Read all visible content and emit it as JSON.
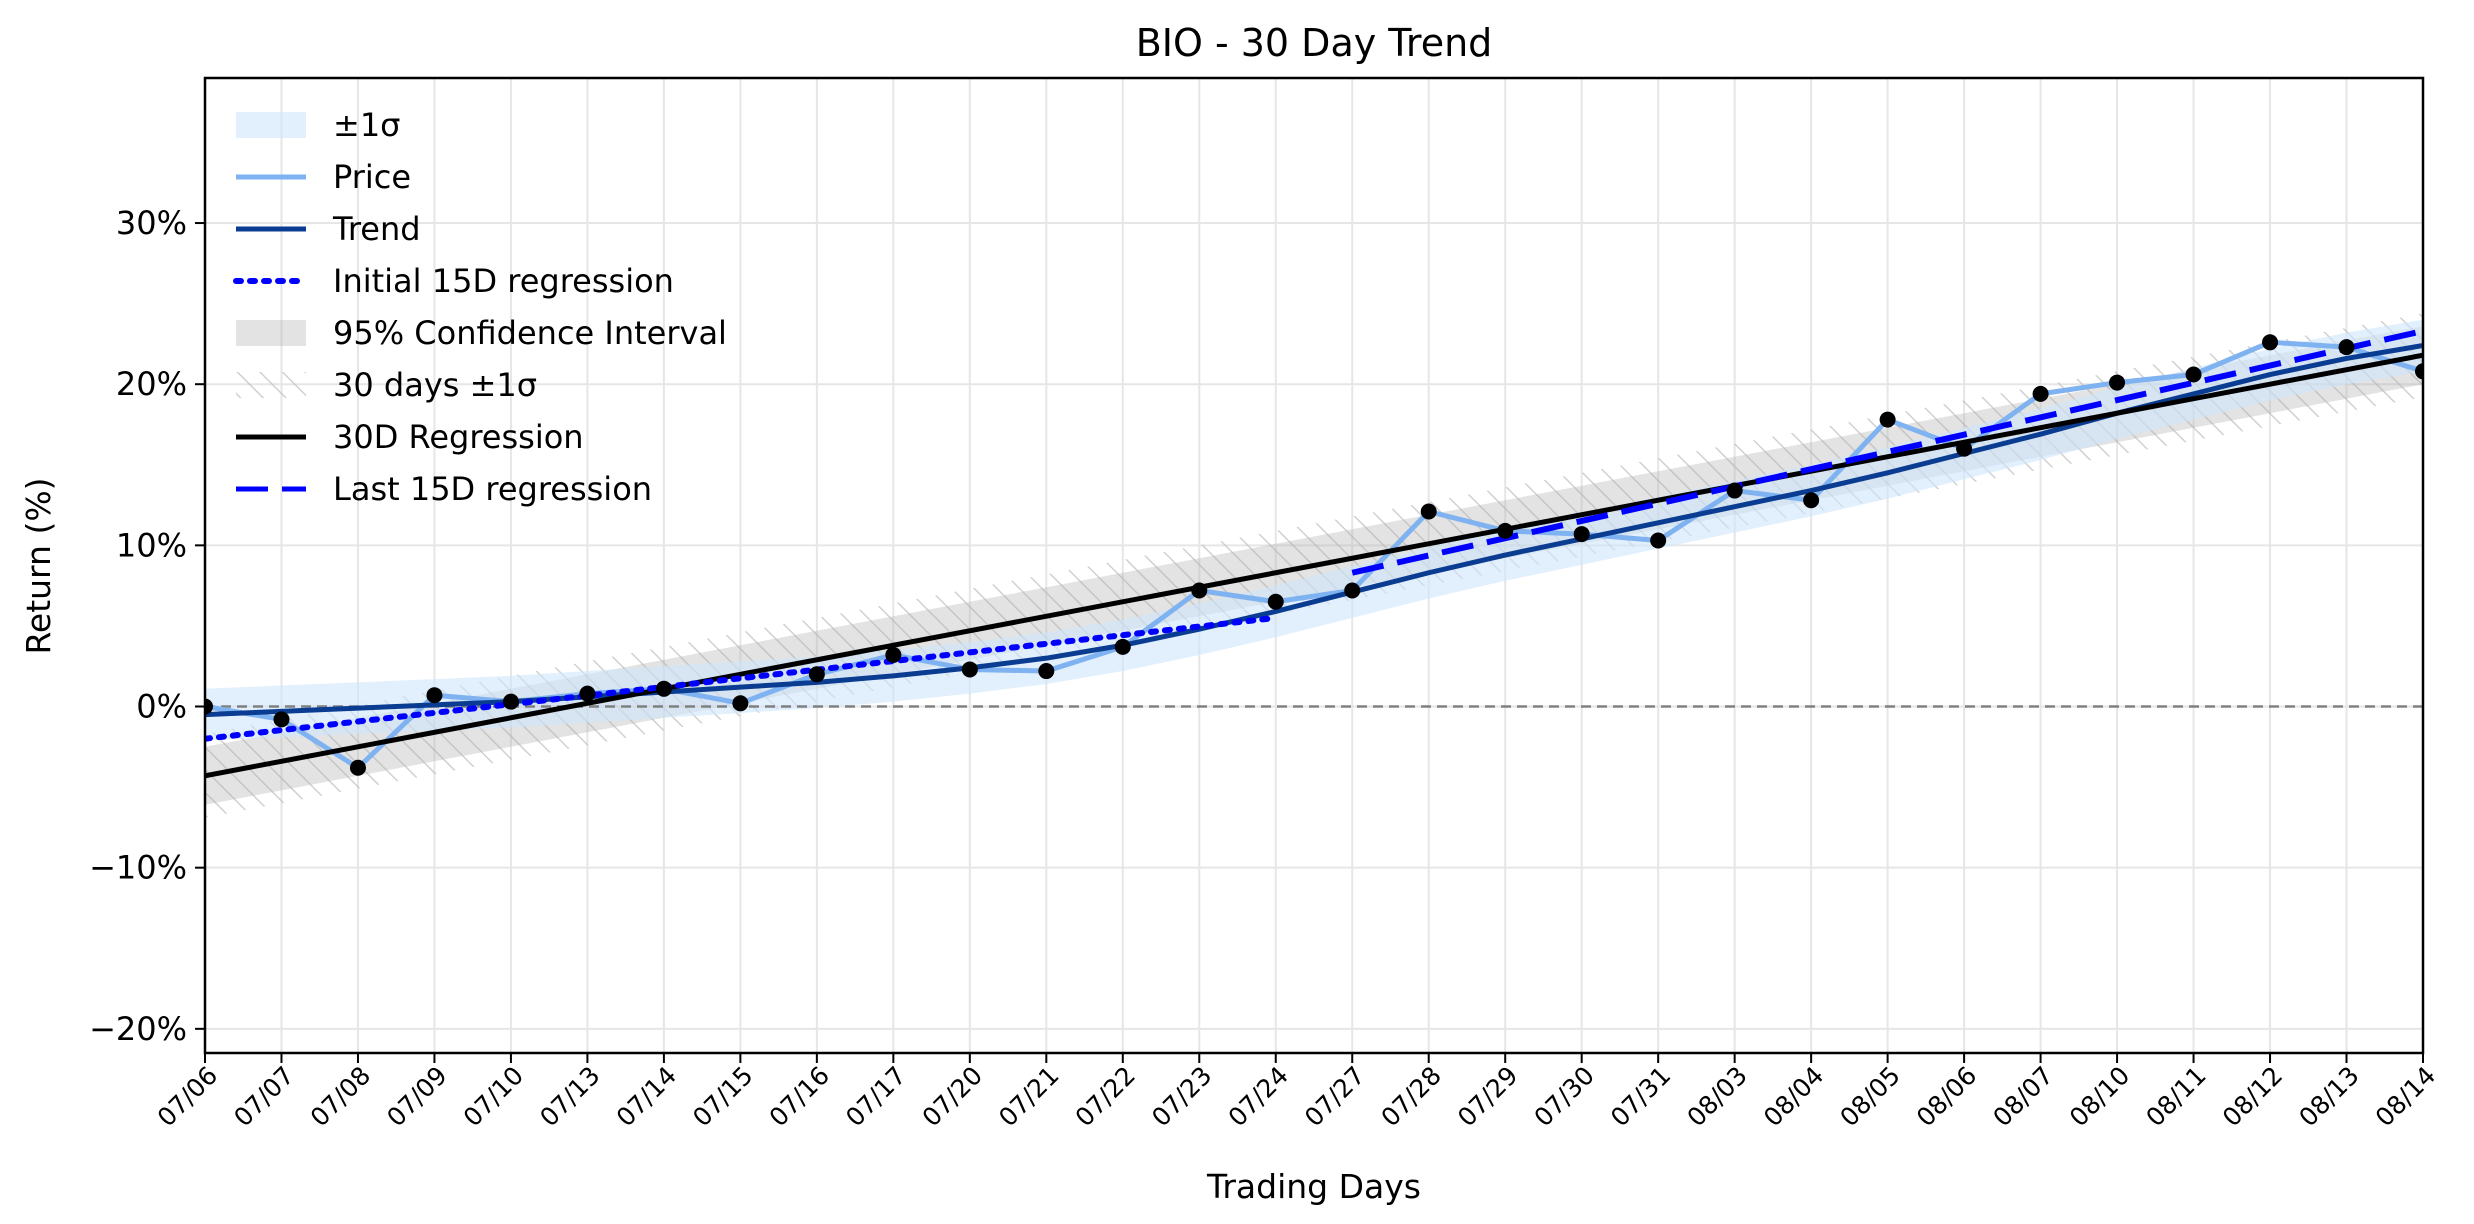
{
  "chart_data": {
    "type": "line",
    "title": "BIO - 30 Day Trend",
    "xlabel": "Trading Days",
    "ylabel": "Return (%)",
    "categories": [
      "07/06",
      "07/07",
      "07/08",
      "07/09",
      "07/10",
      "07/13",
      "07/14",
      "07/15",
      "07/16",
      "07/17",
      "07/20",
      "07/21",
      "07/22",
      "07/23",
      "07/24",
      "07/27",
      "07/28",
      "07/29",
      "07/30",
      "07/31",
      "08/03",
      "08/04",
      "08/05",
      "08/06",
      "08/07",
      "08/10",
      "08/11",
      "08/12",
      "08/13",
      "08/14"
    ],
    "ylim": [
      -21.5,
      39
    ],
    "yticks": [
      -20,
      -10,
      0,
      10,
      20,
      30
    ],
    "ytick_labels": [
      "−20%",
      "−10%",
      "0%",
      "10%",
      "20%",
      "30%"
    ],
    "grid": true,
    "zero_line": true,
    "legend_position": "top-left",
    "series": [
      {
        "name": "Price",
        "color": "#7fb2f0",
        "values": [
          0.0,
          -0.8,
          -3.8,
          0.7,
          0.3,
          0.8,
          1.1,
          0.2,
          2.0,
          3.2,
          2.3,
          2.2,
          3.7,
          7.2,
          6.5,
          7.2,
          12.1,
          10.9,
          10.7,
          10.3,
          13.4,
          12.8,
          17.8,
          16.0,
          19.4,
          20.1,
          20.6,
          22.6,
          22.3,
          20.8
        ]
      },
      {
        "name": "Trend",
        "color": "#0a3d91",
        "values": [
          -0.5,
          -0.3,
          -0.1,
          0.1,
          0.3,
          0.6,
          0.9,
          1.2,
          1.5,
          1.9,
          2.4,
          3.0,
          3.8,
          4.8,
          5.9,
          7.1,
          8.3,
          9.4,
          10.4,
          11.4,
          12.4,
          13.4,
          14.5,
          15.7,
          16.9,
          18.2,
          19.4,
          20.6,
          21.6,
          22.4
        ]
      },
      {
        "name": "Initial 15D regression",
        "color": "#0000ff",
        "x_range": [
          0,
          14
        ],
        "y_range": [
          -2.0,
          5.5
        ]
      },
      {
        "name": "30D Regression",
        "color": "#000000",
        "x_range": [
          0,
          29
        ],
        "y_range": [
          -4.3,
          21.8
        ]
      },
      {
        "name": "Last 15D regression",
        "color": "#0000ff",
        "x_range": [
          15,
          29
        ],
        "y_range": [
          8.3,
          23.3
        ]
      }
    ],
    "bands": [
      {
        "name": "±1σ",
        "color": "#cfe4fb",
        "half_width": 1.6,
        "around": "Trend"
      },
      {
        "name": "95% Confidence Interval",
        "color": "#b0b0b0",
        "half_width": 1.8,
        "around": "30D Regression"
      },
      {
        "name": "30 days ±1σ",
        "color": "#d8d8d8",
        "half_width": 2.6,
        "around": "30D Regression"
      }
    ],
    "legend": [
      {
        "label": "±1σ",
        "kind": "patch",
        "color": "#cfe4fb"
      },
      {
        "label": "Price",
        "kind": "line",
        "color": "#7fb2f0",
        "dash": "solid"
      },
      {
        "label": "Trend",
        "kind": "line",
        "color": "#0a3d91",
        "dash": "solid"
      },
      {
        "label": "Initial 15D regression",
        "kind": "line",
        "color": "#0000ff",
        "dash": "dotted"
      },
      {
        "label": "95% Confidence Interval",
        "kind": "patch",
        "color": "#b0b0b0"
      },
      {
        "label": "30 days ±1σ",
        "kind": "hatch",
        "color": "#d8d8d8"
      },
      {
        "label": "30D Regression",
        "kind": "line",
        "color": "#000000",
        "dash": "solid"
      },
      {
        "label": "Last 15D regression",
        "kind": "line",
        "color": "#0000ff",
        "dash": "dashed"
      }
    ]
  }
}
